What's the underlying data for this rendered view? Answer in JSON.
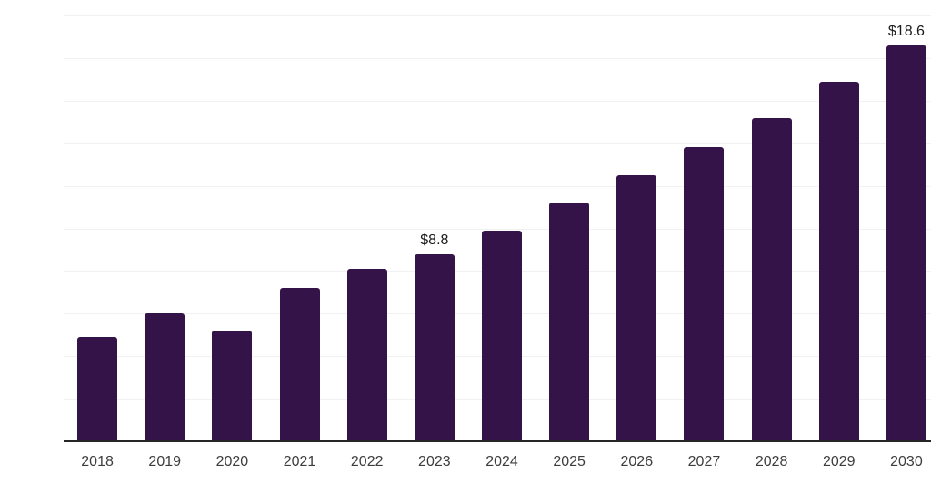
{
  "chart_data": {
    "type": "bar",
    "title": "",
    "xlabel": "",
    "ylabel": "",
    "categories": [
      "2018",
      "2019",
      "2020",
      "2021",
      "2022",
      "2023",
      "2024",
      "2025",
      "2026",
      "2027",
      "2028",
      "2029",
      "2030"
    ],
    "values": [
      4.9,
      6.0,
      5.2,
      7.2,
      8.1,
      8.8,
      9.9,
      11.2,
      12.5,
      13.8,
      15.2,
      16.9,
      18.6
    ],
    "bar_labels": [
      "",
      "",
      "",
      "",
      "",
      "$8.8",
      "",
      "",
      "",
      "",
      "",
      "",
      "$18.6"
    ],
    "ylim": [
      0,
      20
    ],
    "gridline_step": 2,
    "grid": true,
    "legend": false,
    "colors": {
      "bar": "#341349",
      "grid": "#f1f1f1",
      "axis": "#262626",
      "tick_label": "#3d3d3d",
      "value_label": "#1a1a1a",
      "background": "#ffffff"
    }
  }
}
